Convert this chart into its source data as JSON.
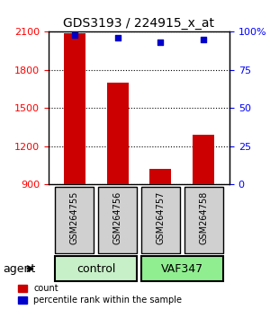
{
  "title": "GDS3193 / 224915_x_at",
  "samples": [
    "GSM264755",
    "GSM264756",
    "GSM264757",
    "GSM264758"
  ],
  "counts": [
    2090,
    1700,
    1020,
    1290
  ],
  "percentiles": [
    98,
    96,
    93,
    95
  ],
  "ylim_left": [
    900,
    2100
  ],
  "ylim_right": [
    0,
    100
  ],
  "yticks_left": [
    900,
    1200,
    1500,
    1800,
    2100
  ],
  "yticks_right": [
    0,
    25,
    50,
    75,
    100
  ],
  "yticklabels_right": [
    "0",
    "25",
    "50",
    "75",
    "100%"
  ],
  "groups": [
    {
      "label": "control",
      "indices": [
        0,
        1
      ],
      "color": "#c8f0c8"
    },
    {
      "label": "VAF347",
      "indices": [
        2,
        3
      ],
      "color": "#90ee90"
    }
  ],
  "bar_color": "#cc0000",
  "dot_color": "#0000cc",
  "bar_width": 0.5,
  "agent_label": "agent",
  "legend_count_label": "count",
  "legend_pct_label": "percentile rank within the sample",
  "grid_color": "#000000",
  "sample_box_color": "#d0d0d0"
}
